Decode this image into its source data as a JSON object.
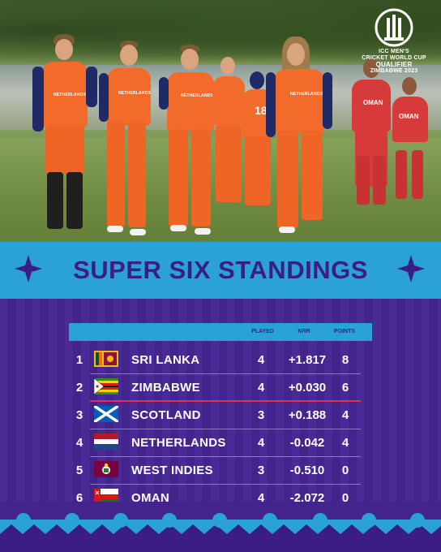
{
  "logo": {
    "line1": "ICC MEN'S",
    "line2": "CRICKET WORLD CUP",
    "line3": "QUALIFIER",
    "line4": "ZIMBABWE 2023"
  },
  "photo": {
    "jersey_text": "NETHERLANDS",
    "oman_text": "OMAN",
    "jersey_number": "18"
  },
  "title": "SUPER SIX STANDINGS",
  "columns": {
    "played": "PLAYED",
    "nrr": "NRR",
    "points": "POINTS"
  },
  "rows": [
    {
      "rank": "1",
      "team": "SRI LANKA",
      "played": "4",
      "nrr": "+1.817",
      "points": "8",
      "flag": "sri-lanka"
    },
    {
      "rank": "2",
      "team": "ZIMBABWE",
      "played": "4",
      "nrr": "+0.030",
      "points": "6",
      "flag": "zimbabwe"
    },
    {
      "rank": "3",
      "team": "SCOTLAND",
      "played": "3",
      "nrr": "+0.188",
      "points": "4",
      "flag": "scotland"
    },
    {
      "rank": "4",
      "team": "NETHERLANDS",
      "played": "4",
      "nrr": "-0.042",
      "points": "4",
      "flag": "netherlands"
    },
    {
      "rank": "5",
      "team": "WEST INDIES",
      "played": "3",
      "nrr": "-0.510",
      "points": "0",
      "flag": "west-indies"
    },
    {
      "rank": "6",
      "team": "OMAN",
      "played": "4",
      "nrr": "-2.072",
      "points": "0",
      "flag": "oman"
    }
  ],
  "colors": {
    "purple": "#3a1e86",
    "cyan": "#2aa1d9",
    "qualification_line": "#e0304a",
    "netherlands_orange": "#f26b2b"
  }
}
